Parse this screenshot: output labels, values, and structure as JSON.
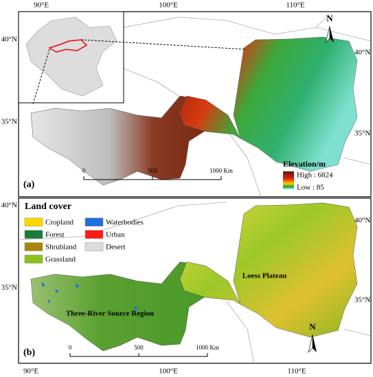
{
  "panel_a": {
    "label": "(a)",
    "lon_labels": [
      "90°E",
      "100°E",
      "110°E"
    ],
    "lat_left": [
      "40°N",
      "35°N"
    ],
    "lat_right": [
      "40°N",
      "35°N"
    ],
    "legend": {
      "title": "Elevation/m",
      "high": "High : 6824",
      "low": "Low : 85"
    },
    "scale": [
      "0",
      "500",
      "1000 Km"
    ],
    "north": "N"
  },
  "panel_b": {
    "label": "(b)",
    "lon_labels": [
      "90°E",
      "100°E",
      "110°E"
    ],
    "lat_left": [
      "40°N",
      "35°N"
    ],
    "lat_right": [
      "40°N",
      "35°N"
    ],
    "legend": {
      "title": "Land cover",
      "items": [
        {
          "name": "Cropland",
          "color": "#ffd700"
        },
        {
          "name": "Waterbodies",
          "color": "#1f6fe0"
        },
        {
          "name": "Forest",
          "color": "#1a7a3a"
        },
        {
          "name": "Urban",
          "color": "#ff1a1a"
        },
        {
          "name": "Shrubland",
          "color": "#a8860b"
        },
        {
          "name": "Desert",
          "color": "#dcdcdc"
        },
        {
          "name": "Grassland",
          "color": "#8cc21a"
        }
      ]
    },
    "regions": [
      "Loess Plateau",
      "Three-River Source Region"
    ],
    "scale": [
      "0",
      "500",
      "1000 Km"
    ],
    "north": "N"
  }
}
